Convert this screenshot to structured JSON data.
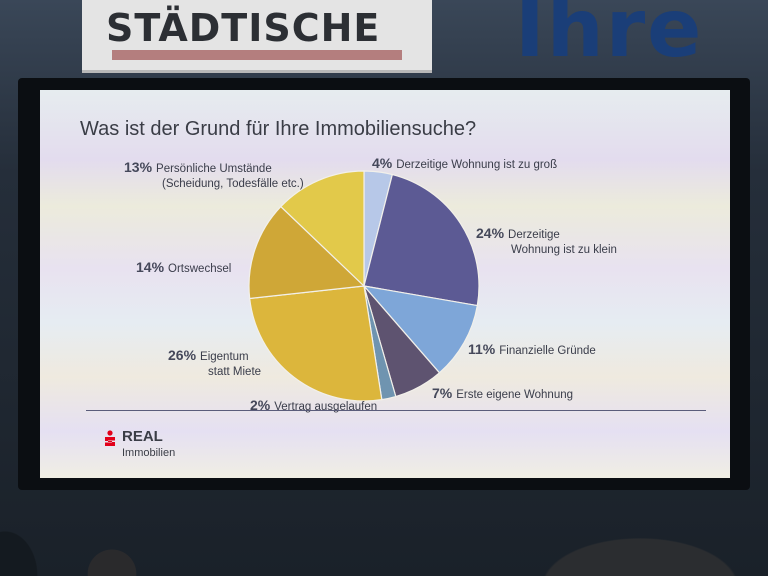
{
  "background": {
    "banner_text": "STÄDTISCHE",
    "wall_text": "Ihre"
  },
  "slide": {
    "title": "Was ist der Grund für Ihre Immobiliensuche?",
    "logo": {
      "name": "REAL",
      "sub": "Immobilien",
      "color": "#e2001a"
    }
  },
  "chart_data": {
    "type": "pie",
    "title": "Was ist der Grund für Ihre Immobiliensuche?",
    "slices": [
      {
        "label": "Derzeitige Wohnung ist zu groß",
        "pct_label": "4%",
        "value": 4,
        "color": "#b7c8e8"
      },
      {
        "label": "Derzeitige Wohnung ist zu klein",
        "pct_label": "24%",
        "value": 24,
        "color": "#5c5a94"
      },
      {
        "label": "Finanzielle Gründe",
        "pct_label": "11%",
        "value": 11,
        "color": "#7ea6d8"
      },
      {
        "label": "Erste eigene Wohnung",
        "pct_label": "7%",
        "value": 7,
        "color": "#5e5370"
      },
      {
        "label": "Vertrag ausgelaufen",
        "pct_label": "2%",
        "value": 2,
        "color": "#6f94b0"
      },
      {
        "label": "Eigentum statt Miete",
        "pct_label": "26%",
        "value": 26,
        "color": "#dcb63c"
      },
      {
        "label": "Ortswechsel",
        "pct_label": "14%",
        "value": 14,
        "color": "#cfa737"
      },
      {
        "label": "Persönliche Umstände (Scheidung, Todesfälle etc.)",
        "pct_label": "13%",
        "value": 13,
        "color": "#e2c94a"
      }
    ],
    "labels": [
      {
        "pct": "4%",
        "lines": [
          "Derzeitige Wohnung ist zu groß"
        ]
      },
      {
        "pct": "24%",
        "lines": [
          "Derzeitige",
          "Wohnung ist zu klein"
        ]
      },
      {
        "pct": "11%",
        "lines": [
          "Finanzielle Gründe"
        ]
      },
      {
        "pct": "7%",
        "lines": [
          "Erste eigene Wohnung"
        ]
      },
      {
        "pct": "2%",
        "lines": [
          "Vertrag ausgelaufen"
        ]
      },
      {
        "pct": "26%",
        "lines": [
          "Eigentum",
          "statt Miete"
        ]
      },
      {
        "pct": "14%",
        "lines": [
          "Ortswechsel"
        ]
      },
      {
        "pct": "13%",
        "lines": [
          "Persönliche Umstände",
          "(Scheidung, Todesfälle etc.)"
        ]
      }
    ]
  }
}
